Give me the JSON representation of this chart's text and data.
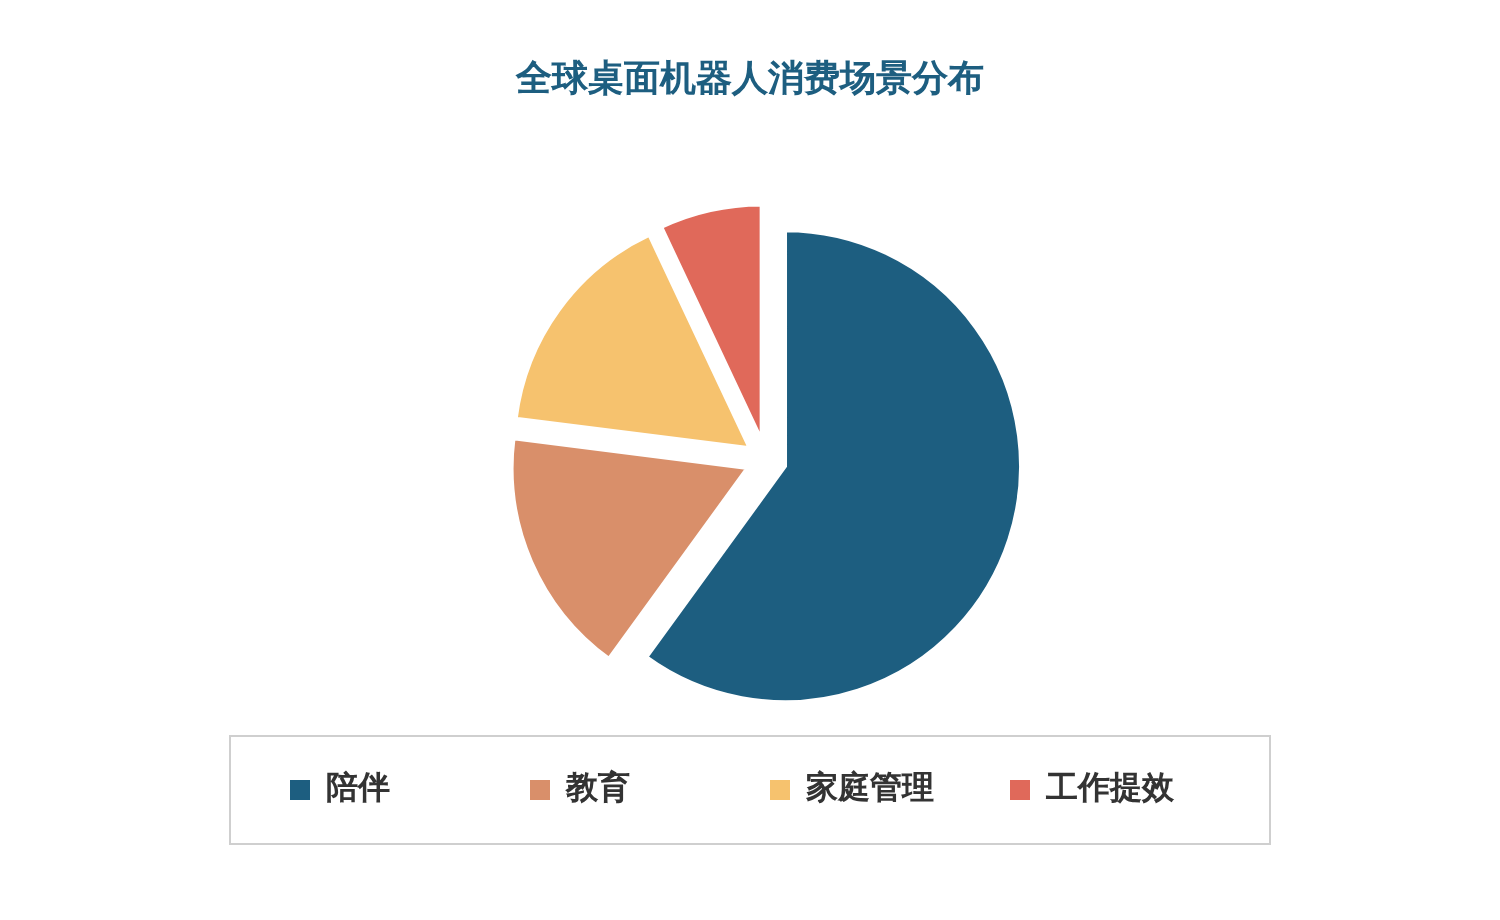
{
  "chart_data": {
    "type": "pie",
    "title": "全球桌面机器人消费场景分布",
    "categories": [
      "陪伴",
      "教育",
      "家庭管理",
      "工作提效"
    ],
    "values": [
      60,
      17,
      16,
      7
    ],
    "colors": [
      "#1d5e80",
      "#d98f6a",
      "#f6c26e",
      "#e0695a"
    ],
    "legend": "bottom"
  }
}
